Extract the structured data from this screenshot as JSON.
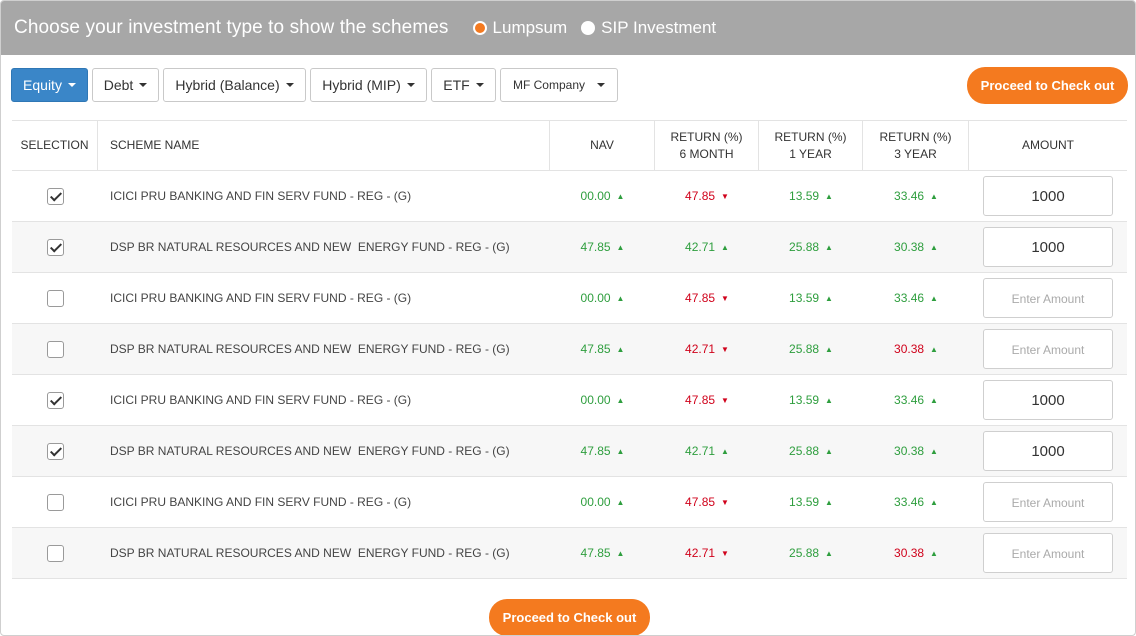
{
  "header": {
    "title": "Choose your investment type to show the schemes",
    "options": [
      {
        "label": "Lumpsum",
        "selected": true
      },
      {
        "label": "SIP Investment",
        "selected": false
      }
    ]
  },
  "toolbar": {
    "filters": [
      {
        "label": "Equity",
        "active": true
      },
      {
        "label": "Debt",
        "active": false
      },
      {
        "label": "Hybrid (Balance)",
        "active": false
      },
      {
        "label": "Hybrid (MIP)",
        "active": false
      },
      {
        "label": "ETF",
        "active": false
      },
      {
        "label": "MF Company",
        "active": false
      }
    ],
    "checkout_label": "Proceed to Check out"
  },
  "table": {
    "headers": {
      "selection": "SELECTION",
      "scheme": "SCHEME NAME",
      "nav": "NAV",
      "r6_line1": "RETURN (%)",
      "r6_line2": "6 MONTH",
      "r1_line1": "RETURN (%)",
      "r1_line2": "1 YEAR",
      "r3_line1": "RETURN (%)",
      "r3_line2": "3 YEAR",
      "amount": "AMOUNT"
    },
    "placeholder": "Enter Amount",
    "rows": [
      {
        "checked": true,
        "name": "ICICI PRU BANKING AND FIN SERV FUND - REG - (G)",
        "nav": "00.00",
        "nav_dir": "up",
        "r6": "47.85",
        "r6_dir": "down",
        "r1": "13.59",
        "r1_dir": "up",
        "r3": "33.46",
        "r3_dir": "up",
        "r3_color": "green",
        "amount": "1000"
      },
      {
        "checked": true,
        "name": "DSP BR NATURAL RESOURCES AND NEW  ENERGY FUND - REG - (G)",
        "nav": "47.85",
        "nav_dir": "up",
        "r6": "42.71",
        "r6_dir": "up",
        "r1": "25.88",
        "r1_dir": "up",
        "r3": "30.38",
        "r3_dir": "up",
        "r3_color": "green",
        "amount": "1000"
      },
      {
        "checked": false,
        "name": "ICICI PRU BANKING AND FIN SERV FUND - REG - (G)",
        "nav": "00.00",
        "nav_dir": "up",
        "r6": "47.85",
        "r6_dir": "down",
        "r1": "13.59",
        "r1_dir": "up",
        "r3": "33.46",
        "r3_dir": "up",
        "r3_color": "green",
        "amount": ""
      },
      {
        "checked": false,
        "name": "DSP BR NATURAL RESOURCES AND NEW  ENERGY FUND - REG - (G)",
        "nav": "47.85",
        "nav_dir": "up",
        "r6": "42.71",
        "r6_dir": "down",
        "r1": "25.88",
        "r1_dir": "up",
        "r3": "30.38",
        "r3_dir": "up",
        "r3_color": "red",
        "amount": ""
      },
      {
        "checked": true,
        "name": "ICICI PRU BANKING AND FIN SERV FUND - REG - (G)",
        "nav": "00.00",
        "nav_dir": "up",
        "r6": "47.85",
        "r6_dir": "down",
        "r1": "13.59",
        "r1_dir": "up",
        "r3": "33.46",
        "r3_dir": "up",
        "r3_color": "green",
        "amount": "1000"
      },
      {
        "checked": true,
        "name": "DSP BR NATURAL RESOURCES AND NEW  ENERGY FUND - REG - (G)",
        "nav": "47.85",
        "nav_dir": "up",
        "r6": "42.71",
        "r6_dir": "up",
        "r1": "25.88",
        "r1_dir": "up",
        "r3": "30.38",
        "r3_dir": "up",
        "r3_color": "green",
        "amount": "1000"
      },
      {
        "checked": false,
        "name": "ICICI PRU BANKING AND FIN SERV FUND - REG - (G)",
        "nav": "00.00",
        "nav_dir": "up",
        "r6": "47.85",
        "r6_dir": "down",
        "r1": "13.59",
        "r1_dir": "up",
        "r3": "33.46",
        "r3_dir": "up",
        "r3_color": "green",
        "amount": ""
      },
      {
        "checked": false,
        "name": "DSP BR NATURAL RESOURCES AND NEW  ENERGY FUND - REG - (G)",
        "nav": "47.85",
        "nav_dir": "up",
        "r6": "42.71",
        "r6_dir": "down",
        "r1": "25.88",
        "r1_dir": "up",
        "r3": "30.38",
        "r3_dir": "up",
        "r3_color": "red",
        "amount": ""
      }
    ]
  },
  "colors": {
    "accent_orange": "#f47a1f",
    "active_blue": "#3a86c8",
    "up_green": "#2e9e3e",
    "down_red": "#d0021b",
    "header_gray": "#a7a7a7"
  },
  "icons": {
    "up": "triangle-up-icon",
    "down": "triangle-down-icon",
    "caret": "caret-down-icon"
  }
}
